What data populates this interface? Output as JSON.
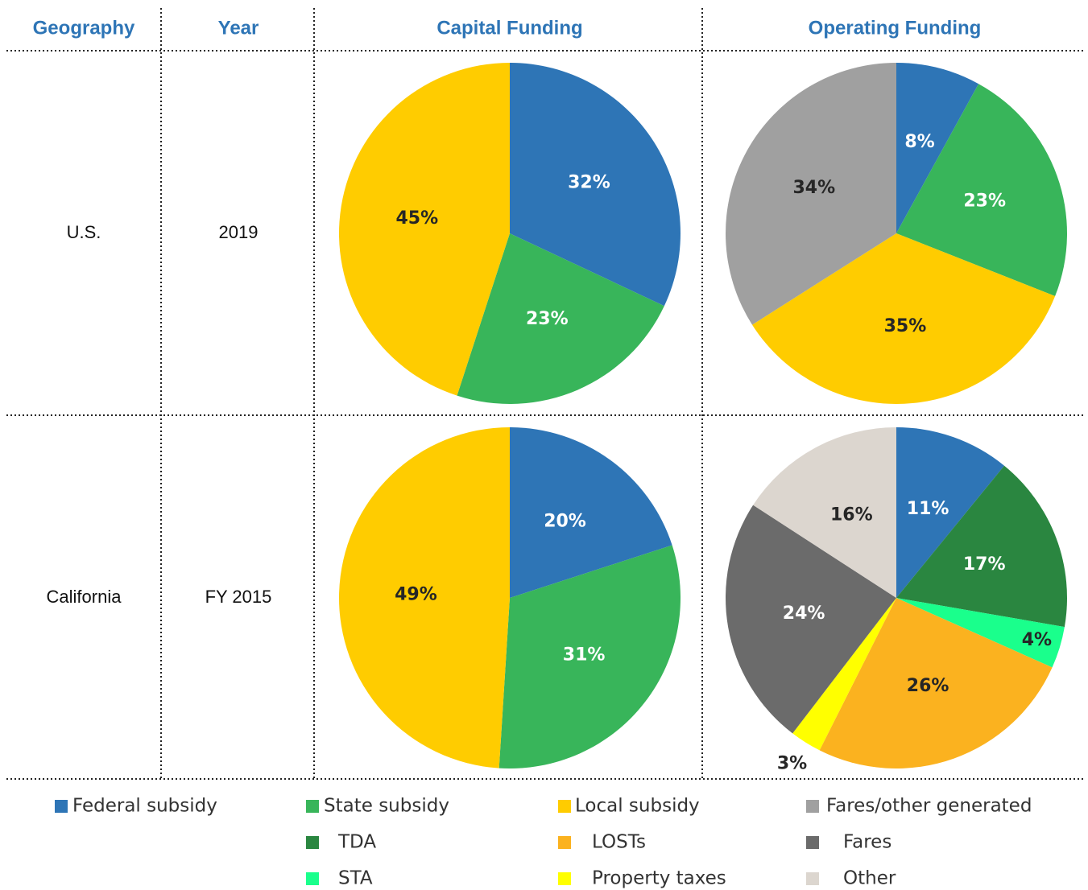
{
  "table": {
    "headers": [
      "Geography",
      "Year",
      "Capital Funding",
      "Operating Funding"
    ],
    "rows": [
      [
        "U.S.",
        "2019"
      ],
      [
        "California",
        "FY 2015"
      ]
    ]
  },
  "chart_data": [
    {
      "type": "pie",
      "values": [
        32,
        23,
        45
      ],
      "value_labels": [
        "32%",
        "23%",
        "45%"
      ],
      "colors": [
        "#2e75b6",
        "#38b55a",
        "#ffcc00"
      ],
      "label_colors": [
        "#ffffff",
        "#ffffff",
        "#262626"
      ]
    },
    {
      "type": "pie",
      "values": [
        8,
        23,
        35,
        34
      ],
      "value_labels": [
        "8%",
        "23%",
        "35%",
        "34%"
      ],
      "colors": [
        "#2e75b6",
        "#38b55a",
        "#ffcc00",
        "#a0a0a0"
      ],
      "label_colors": [
        "#ffffff",
        "#ffffff",
        "#262626",
        "#262626"
      ]
    },
    {
      "type": "pie",
      "values": [
        20,
        31,
        49
      ],
      "value_labels": [
        "20%",
        "31%",
        "49%"
      ],
      "colors": [
        "#2e75b6",
        "#38b55a",
        "#ffcc00"
      ],
      "label_colors": [
        "#ffffff",
        "#ffffff",
        "#262626"
      ]
    },
    {
      "type": "pie",
      "values": [
        11,
        17,
        4,
        26,
        3,
        24,
        16
      ],
      "value_labels": [
        "11%",
        "17%",
        "4%",
        "26%",
        "3%",
        "24%",
        "16%"
      ],
      "colors": [
        "#2e75b6",
        "#2a8640",
        "#1aff8c",
        "#fbb21f",
        "#ffff00",
        "#6b6b6b",
        "#dcd6cf"
      ],
      "label_colors": [
        "#ffffff",
        "#ffffff",
        "#262626",
        "#262626",
        "#262626",
        "#ffffff",
        "#262626"
      ]
    }
  ],
  "legend": [
    {
      "name": "Federal subsidy",
      "color": "#2e75b6"
    },
    {
      "name": "State subsidy",
      "color": "#38b55a"
    },
    {
      "name": "Local subsidy",
      "color": "#ffcc00"
    },
    {
      "name": "Fares/other generated",
      "color": "#a0a0a0"
    },
    {
      "name": "TDA",
      "color": "#2a8640"
    },
    {
      "name": "LOSTs",
      "color": "#fbb21f"
    },
    {
      "name": "Fares",
      "color": "#6b6b6b"
    },
    {
      "name": "STA",
      "color": "#1aff8c"
    },
    {
      "name": "Property taxes",
      "color": "#ffff00"
    },
    {
      "name": "Other",
      "color": "#dcd6cf"
    }
  ]
}
